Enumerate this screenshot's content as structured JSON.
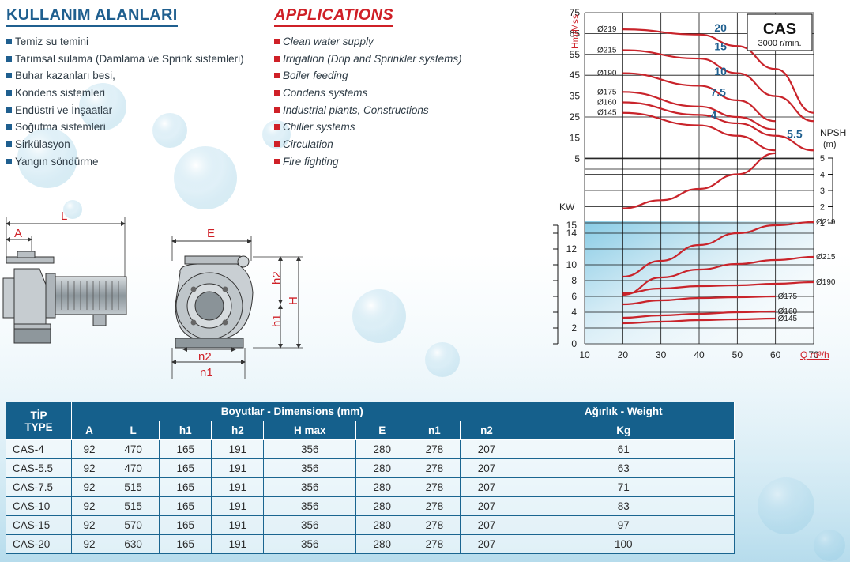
{
  "usage_tr": {
    "title": "KULLANIM ALANLARI",
    "items": [
      "Temiz su temini",
      "Tarımsal sulama (Damlama ve Sprink sistemleri)",
      "Buhar kazanları besi,",
      "Kondens sistemleri",
      "Endüstri ve İnşaatlar",
      "Soğutma sistemleri",
      "Sirkülasyon",
      "Yangın söndürme"
    ]
  },
  "usage_en": {
    "title": "APPLICATIONS",
    "items": [
      "Clean water supply",
      "Irrigation (Drip and Sprinkler systems)",
      "Boiler feeding",
      "Condens systems",
      "Industrial plants, Constructions",
      "Chiller systems",
      "Circulation",
      "Fire fighting"
    ]
  },
  "drawing_labels": {
    "A": "A",
    "L": "L",
    "E": "E",
    "h1": "h1",
    "h2": "h2",
    "H": "H",
    "n1": "n1",
    "n2": "n2"
  },
  "colors": {
    "brand_blue": "#1f5f8f",
    "header_blue": "#15608c",
    "accent_red": "#cf2027",
    "curve_red": "#c9242b"
  },
  "icons": [
    "square-bullet-icon",
    "pump-side-view-drawing",
    "pump-front-view-drawing"
  ],
  "chart_data": {
    "type": "line",
    "model": "CAS",
    "speed": "3000 r/min.",
    "x_label": "Q m³/h",
    "x_ticks": [
      10,
      20,
      30,
      40,
      50,
      60,
      70
    ],
    "xlim": [
      10,
      70
    ],
    "head_axis": {
      "label": "Hm/Mss",
      "ticks": [
        75,
        65,
        55,
        45,
        35,
        25,
        15,
        5
      ],
      "range": [
        0,
        75
      ]
    },
    "npsh_axis": {
      "label": "NPSH",
      "unit": "(m)",
      "ticks": [
        5,
        4,
        3,
        2,
        1
      ],
      "range": [
        1,
        5
      ]
    },
    "power_axis": {
      "label": "KW",
      "ticks": [
        15,
        14,
        12,
        10,
        8,
        6,
        4,
        2,
        0
      ],
      "range": [
        0,
        15
      ]
    },
    "grid": true,
    "head_series": [
      {
        "name": "Ø219",
        "x": [
          20,
          40,
          50,
          60,
          70
        ],
        "y": [
          67,
          64.5,
          59,
          48,
          27
        ]
      },
      {
        "name": "Ø215",
        "x": [
          20,
          40,
          50,
          60,
          70
        ],
        "y": [
          57,
          53,
          46,
          35,
          23
        ]
      },
      {
        "name": "Ø190",
        "x": [
          20,
          40,
          50,
          60
        ],
        "y": [
          46,
          40,
          33,
          23
        ]
      },
      {
        "name": "Ø175",
        "x": [
          20,
          40,
          50,
          60
        ],
        "y": [
          37,
          30,
          25,
          19
        ]
      },
      {
        "name": "Ø160",
        "x": [
          20,
          40,
          50,
          60,
          70
        ],
        "y": [
          32,
          26,
          22,
          16,
          9
        ]
      },
      {
        "name": "Ø145",
        "x": [
          20,
          40,
          50,
          60
        ],
        "y": [
          27,
          21,
          16,
          9
        ]
      }
    ],
    "npsh_series": {
      "x": [
        20,
        30,
        40,
        50,
        60
      ],
      "y": [
        1.9,
        2.4,
        3.1,
        4.0,
        5.3
      ]
    },
    "power_series": [
      {
        "name": "Ø219",
        "x": [
          20,
          30,
          40,
          50,
          60,
          70
        ],
        "y": [
          8.5,
          10.5,
          12.5,
          14.0,
          15.0,
          15.4
        ]
      },
      {
        "name": "Ø215",
        "x": [
          20,
          30,
          40,
          50,
          60,
          70
        ],
        "y": [
          6.2,
          8.4,
          9.4,
          10.1,
          10.6,
          11.0
        ]
      },
      {
        "name": "Ø190",
        "x": [
          20,
          30,
          40,
          50,
          60,
          70
        ],
        "y": [
          6.4,
          7.0,
          7.3,
          7.4,
          7.6,
          7.8
        ]
      },
      {
        "name": "Ø175",
        "x": [
          20,
          30,
          40,
          50,
          60
        ],
        "y": [
          5.0,
          5.5,
          5.8,
          5.9,
          6.0
        ]
      },
      {
        "name": "Ø160",
        "x": [
          20,
          30,
          40,
          50,
          60
        ],
        "y": [
          3.3,
          3.6,
          3.8,
          4.0,
          4.1
        ]
      },
      {
        "name": "Ø145",
        "x": [
          20,
          30,
          40,
          50,
          60
        ],
        "y": [
          2.6,
          2.8,
          3.0,
          3.1,
          3.2
        ]
      }
    ],
    "power_labels": [
      "Ø219",
      "Ø215",
      "Ø190",
      "Ø175",
      "Ø160",
      "Ø145"
    ],
    "head_labels_left": [
      "Ø219",
      "Ø215",
      "Ø190",
      "Ø175",
      "Ø160",
      "Ø145"
    ],
    "model_labels": [
      {
        "text": "20",
        "x": 44,
        "y": 66
      },
      {
        "text": "15",
        "x": 44,
        "y": 57
      },
      {
        "text": "10",
        "x": 44,
        "y": 45
      },
      {
        "text": "7.5",
        "x": 43,
        "y": 35
      },
      {
        "text": "4",
        "x": 43,
        "y": 24
      },
      {
        "text": "5.5",
        "x": 63,
        "y": 15
      }
    ]
  },
  "table": {
    "type_header_tr": "TİP",
    "type_header_en": "TYPE",
    "dims_header": "Boyutlar -  Dimensions (mm)",
    "weight_header": "Ağırlık - Weight",
    "columns": [
      "A",
      "L",
      "h1",
      "h2",
      "H max",
      "E",
      "n1",
      "n2",
      "Kg"
    ],
    "rows": [
      [
        "CAS-4",
        "92",
        "470",
        "165",
        "191",
        "356",
        "280",
        "278",
        "207",
        "61"
      ],
      [
        "CAS-5.5",
        "92",
        "470",
        "165",
        "191",
        "356",
        "280",
        "278",
        "207",
        "63"
      ],
      [
        "CAS-7.5",
        "92",
        "515",
        "165",
        "191",
        "356",
        "280",
        "278",
        "207",
        "71"
      ],
      [
        "CAS-10",
        "92",
        "515",
        "165",
        "191",
        "356",
        "280",
        "278",
        "207",
        "83"
      ],
      [
        "CAS-15",
        "92",
        "570",
        "165",
        "191",
        "356",
        "280",
        "278",
        "207",
        "97"
      ],
      [
        "CAS-20",
        "92",
        "630",
        "165",
        "191",
        "356",
        "280",
        "278",
        "207",
        "100"
      ]
    ]
  }
}
